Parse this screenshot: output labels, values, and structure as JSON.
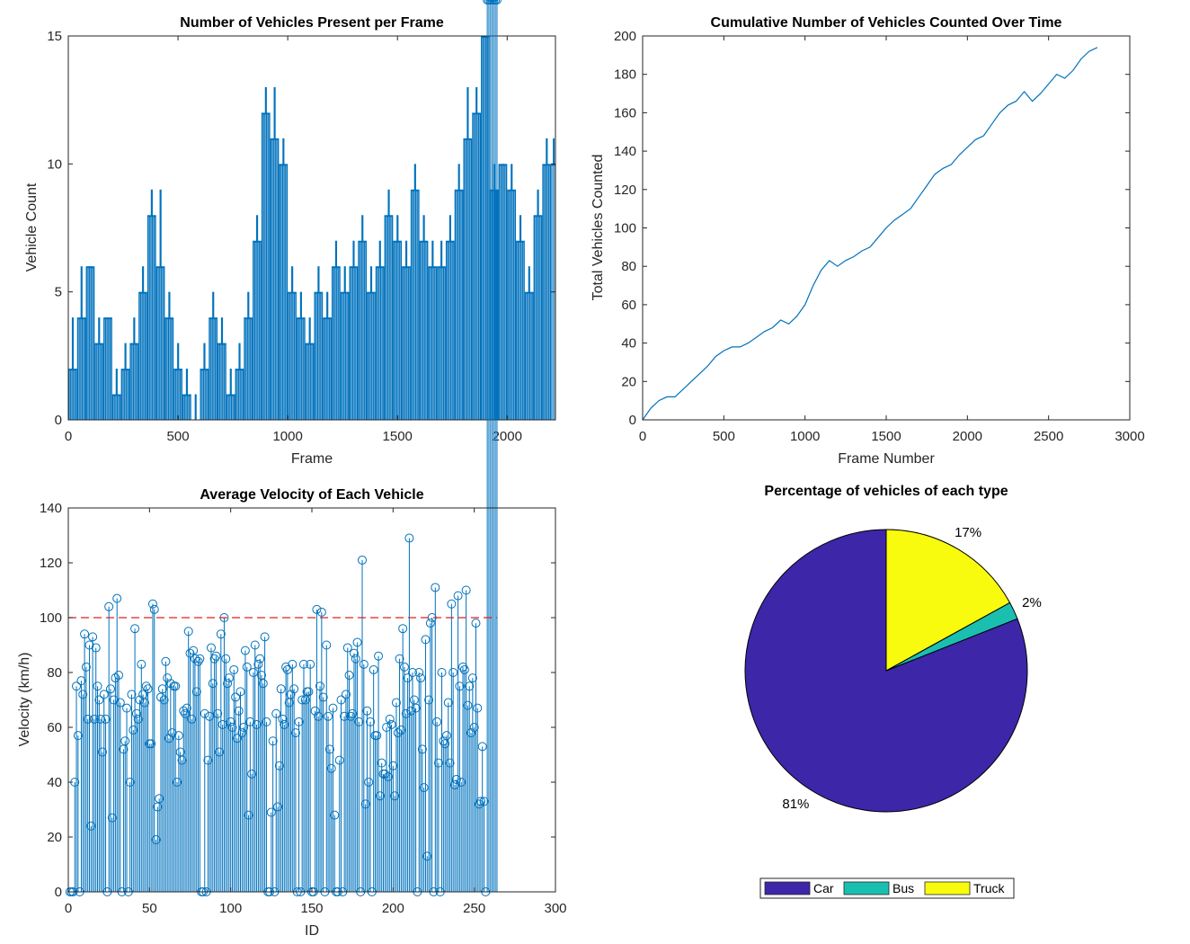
{
  "colors": {
    "line": "#0072BD",
    "threshold": "#E02020",
    "car": "#3E26A8",
    "bus": "#1BBFB0",
    "truck": "#F9FB0E",
    "axis": "#262626"
  },
  "chart_data": [
    {
      "type": "bar",
      "title": "Number of Vehicles Present per Frame",
      "xlabel": "Frame",
      "ylabel": "Vehicle Count",
      "xlim": [
        0,
        2220
      ],
      "ylim": [
        0,
        15
      ],
      "xticks": [
        0,
        500,
        1000,
        1500,
        2000
      ],
      "yticks": [
        0,
        5,
        10,
        15
      ],
      "series": [
        {
          "frames": [
            0,
            40,
            80,
            120,
            160,
            200,
            240,
            280,
            320,
            360,
            400,
            440,
            480,
            520,
            560,
            600,
            640,
            680,
            720,
            760,
            800,
            840,
            880,
            920,
            960,
            1000,
            1040,
            1080,
            1120,
            1160,
            1200,
            1240,
            1280,
            1320,
            1360,
            1400,
            1440,
            1480,
            1520,
            1560,
            1600,
            1640,
            1680,
            1720,
            1760,
            1800,
            1840,
            1880,
            1920,
            1960,
            2000,
            2040,
            2080,
            2120,
            2160,
            2200
          ],
          "counts": [
            2,
            4,
            6,
            3,
            4,
            1,
            2,
            3,
            5,
            8,
            6,
            4,
            2,
            1,
            0,
            2,
            4,
            3,
            1,
            2,
            4,
            7,
            12,
            11,
            10,
            5,
            4,
            3,
            5,
            4,
            6,
            5,
            6,
            7,
            5,
            6,
            8,
            7,
            6,
            9,
            7,
            6,
            6,
            7,
            9,
            11,
            12,
            15,
            9,
            10,
            9,
            7,
            5,
            8,
            10,
            10
          ],
          "peaks": [
            4,
            6,
            6,
            4,
            4,
            2,
            3,
            4,
            6,
            9,
            9,
            5,
            3,
            2,
            1,
            3,
            5,
            4,
            2,
            3,
            5,
            8,
            13,
            13,
            11,
            6,
            5,
            4,
            6,
            5,
            7,
            6,
            7,
            8,
            6,
            7,
            9,
            8,
            7,
            10,
            8,
            7,
            7,
            8,
            10,
            13,
            13,
            15,
            10,
            10,
            10,
            8,
            6,
            9,
            11,
            11
          ]
        }
      ]
    },
    {
      "type": "line",
      "title": "Cumulative Number of Vehicles Counted Over Time",
      "xlabel": "Frame Number",
      "ylabel": "Total Vehicles Counted",
      "xlim": [
        0,
        3000
      ],
      "ylim": [
        0,
        200
      ],
      "xticks": [
        0,
        500,
        1000,
        1500,
        2000,
        2500,
        3000
      ],
      "yticks": [
        0,
        20,
        40,
        60,
        80,
        100,
        120,
        140,
        160,
        180,
        200
      ],
      "series": [
        {
          "x": [
            0,
            50,
            100,
            150,
            200,
            250,
            300,
            350,
            400,
            450,
            500,
            550,
            600,
            650,
            700,
            750,
            800,
            850,
            900,
            950,
            1000,
            1050,
            1100,
            1150,
            1200,
            1250,
            1300,
            1350,
            1400,
            1450,
            1500,
            1550,
            1600,
            1650,
            1700,
            1750,
            1800,
            1850,
            1900,
            1950,
            2000,
            2050,
            2100,
            2150,
            2200,
            2250,
            2300,
            2350,
            2400,
            2450,
            2500,
            2550,
            2600,
            2650,
            2700,
            2750,
            2800
          ],
          "y": [
            0,
            6,
            10,
            12,
            12,
            16,
            20,
            24,
            28,
            33,
            36,
            38,
            38,
            40,
            43,
            46,
            48,
            52,
            50,
            54,
            60,
            70,
            78,
            83,
            80,
            83,
            85,
            88,
            90,
            95,
            100,
            104,
            107,
            110,
            116,
            122,
            128,
            131,
            133,
            138,
            142,
            146,
            148,
            154,
            160,
            164,
            166,
            171,
            166,
            170,
            175,
            180,
            178,
            182,
            188,
            192,
            194
          ]
        }
      ]
    },
    {
      "type": "scatter",
      "title": "Average Velocity of Each Vehicle",
      "xlabel": "ID",
      "ylabel": "Velocity (km/h)",
      "xlim": [
        0,
        300
      ],
      "ylim": [
        0,
        140
      ],
      "xticks": [
        0,
        50,
        100,
        150,
        200,
        250,
        300
      ],
      "yticks": [
        0,
        20,
        40,
        60,
        80,
        100,
        120,
        140
      ],
      "threshold": 100,
      "series": [
        {
          "ids": [
            1,
            2,
            3,
            4,
            5,
            6,
            7,
            8,
            9,
            10,
            11,
            12,
            13,
            14,
            15,
            16,
            17,
            18,
            19,
            20,
            21,
            22,
            23,
            24,
            25,
            26,
            27,
            28,
            29,
            30,
            31,
            32,
            33,
            34,
            35,
            36,
            37,
            38,
            39,
            40,
            41,
            42,
            43,
            44,
            45,
            46,
            47,
            48,
            49,
            50,
            51,
            52,
            53,
            54,
            55,
            56,
            57,
            58,
            59,
            60,
            61,
            62,
            63,
            64,
            65,
            66,
            67,
            68,
            69,
            70,
            71,
            72,
            73,
            74,
            75,
            76,
            77,
            78,
            79,
            80,
            81,
            82,
            83,
            84,
            85,
            86,
            87,
            88,
            89,
            90,
            91,
            92,
            93,
            94,
            95,
            96,
            97,
            98,
            99,
            100,
            101,
            102,
            103,
            104,
            105,
            106,
            107,
            108,
            109,
            110,
            111,
            112,
            113,
            114,
            115,
            116,
            117,
            118,
            119,
            120,
            121,
            122,
            123,
            124,
            125,
            126,
            127,
            128,
            129,
            130,
            131,
            132,
            133,
            134,
            135,
            136,
            137,
            138,
            139,
            140,
            141,
            142,
            143,
            144,
            145,
            146,
            147,
            148,
            149,
            150,
            151,
            152,
            153,
            154,
            155,
            156,
            157,
            158,
            159,
            160,
            161,
            162,
            163,
            164,
            165,
            166,
            167,
            168,
            169,
            170,
            171,
            172,
            173,
            174,
            175,
            176,
            177,
            178,
            179,
            180,
            181,
            182,
            183,
            184,
            185,
            186,
            187,
            188,
            189,
            190,
            191,
            192,
            193,
            194,
            195,
            196,
            197,
            198,
            199,
            200,
            201,
            202,
            203,
            204,
            205,
            206,
            207,
            208,
            209,
            210,
            211,
            212,
            213,
            214,
            215,
            216,
            217,
            218,
            219,
            220,
            221,
            222,
            223,
            224,
            225,
            226,
            227,
            228,
            229,
            230,
            231,
            232,
            233,
            234,
            235,
            236,
            237,
            238,
            239,
            240,
            241,
            242,
            243,
            244,
            245,
            246,
            247,
            248,
            249,
            250,
            251,
            252,
            253,
            254,
            255,
            256,
            257,
            258,
            259,
            260,
            261,
            262,
            263,
            264
          ],
          "velocities": [
            0,
            0,
            0,
            40,
            75,
            57,
            0,
            77,
            72,
            94,
            82,
            63,
            90,
            24,
            93,
            63,
            89,
            75,
            70,
            63,
            51,
            72,
            63,
            0,
            104,
            74,
            27,
            70,
            78,
            107,
            79,
            69,
            0,
            52,
            55,
            67,
            0,
            40,
            72,
            59,
            96,
            65,
            63,
            70,
            83,
            72,
            69,
            75,
            74,
            54,
            54,
            105,
            103,
            19,
            31,
            34,
            71,
            74,
            70,
            84,
            78,
            56,
            76,
            58,
            75,
            75,
            40,
            57,
            51,
            48,
            66,
            65,
            67,
            95,
            87,
            63,
            88,
            85,
            73,
            84,
            85,
            0,
            0,
            65,
            0,
            48,
            64,
            89,
            76,
            85,
            86,
            65,
            51,
            94,
            61,
            100,
            85,
            76,
            78,
            62,
            60,
            81,
            71,
            56,
            66,
            73,
            58,
            60,
            88,
            82,
            28,
            62,
            43,
            80,
            90,
            61,
            83,
            85,
            79,
            76,
            93,
            62,
            0,
            0,
            29,
            55,
            0,
            65,
            31,
            46,
            74,
            63,
            61,
            82,
            81,
            69,
            72,
            83,
            74,
            58,
            0,
            62,
            0,
            70,
            83,
            70,
            73,
            73,
            83,
            0,
            0,
            66,
            103,
            64,
            75,
            102,
            71,
            0,
            90,
            64,
            52,
            45,
            67,
            28,
            0,
            0,
            48,
            70,
            0,
            64,
            72,
            89,
            79,
            64,
            65,
            87,
            85,
            91,
            62,
            0,
            121,
            83,
            32,
            66,
            40,
            62,
            0,
            81,
            57,
            57,
            86,
            35,
            47,
            43,
            43,
            60,
            42,
            63,
            61,
            46,
            35,
            69,
            58,
            85,
            59,
            96,
            82,
            65,
            78,
            129,
            66,
            80,
            70,
            67,
            0,
            80,
            78,
            52,
            38,
            92,
            13,
            70,
            98,
            100,
            0,
            111,
            62,
            47,
            0,
            80,
            55,
            54,
            57,
            69,
            47,
            105,
            80,
            39,
            41,
            108,
            75,
            40,
            82,
            81,
            110,
            68,
            75,
            58,
            78,
            60,
            98,
            67,
            32,
            33,
            53,
            33,
            0
          ]
        }
      ]
    },
    {
      "type": "pie",
      "title": "Percentage of vehicles of each type",
      "legend": "bottom",
      "slices": [
        {
          "name": "Car",
          "value": 81,
          "label": "81%"
        },
        {
          "name": "Bus",
          "value": 2,
          "label": "2%"
        },
        {
          "name": "Truck",
          "value": 17,
          "label": "17%"
        }
      ]
    }
  ]
}
